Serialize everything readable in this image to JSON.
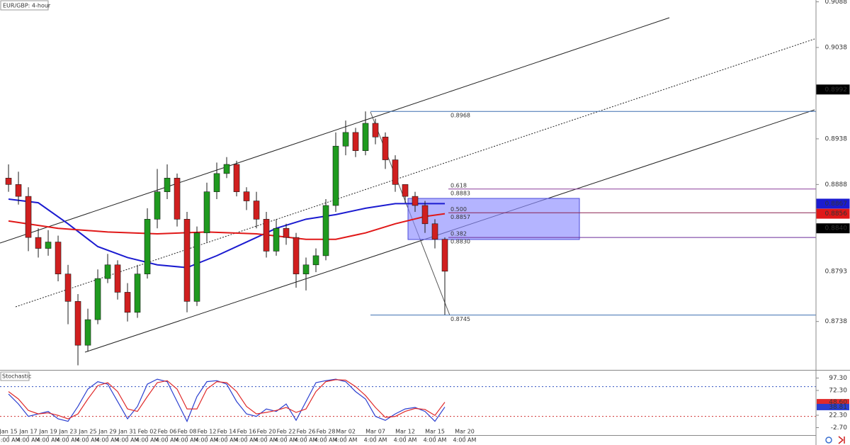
{
  "chart_data": [
    {
      "type": "candlestick",
      "title": "EUR/GBP: 4-hour",
      "up_color": "#1f9a1f",
      "down_color": "#d01f1f",
      "xlim": [
        -0.86,
        81.43
      ],
      "ylim": [
        0.8685,
        0.909
      ],
      "yticks": [
        0.9088,
        0.9038,
        0.8938,
        0.8888,
        0.8738
      ],
      "xticks": [
        {
          "value": 0,
          "label": "Jan 15",
          "time": "4:00 AM"
        },
        {
          "value": 2,
          "label": "Jan 17",
          "time": "4:00 AM"
        },
        {
          "value": 4,
          "label": "Jan 19",
          "time": "4:00 AM"
        },
        {
          "value": 6,
          "label": "Jan 23",
          "time": "4:00 AM"
        },
        {
          "value": 8,
          "label": "Jan 25",
          "time": "4:00 AM"
        },
        {
          "value": 10,
          "label": "Jan 29",
          "time": "4:00 AM"
        },
        {
          "value": 12,
          "label": "Jan 31",
          "time": "4:00 AM"
        },
        {
          "value": 14,
          "label": "Feb 02",
          "time": "4:00 AM"
        },
        {
          "value": 16,
          "label": "Feb 06",
          "time": "4:00 AM"
        },
        {
          "value": 18,
          "label": "Feb 08",
          "time": "4:00 AM"
        },
        {
          "value": 20,
          "label": "Feb 12",
          "time": "4:00 AM"
        },
        {
          "value": 22,
          "label": "Feb 14",
          "time": "4:00 AM"
        },
        {
          "value": 24,
          "label": "Feb 16",
          "time": "4:00 AM"
        },
        {
          "value": 26,
          "label": "Feb 20",
          "time": "4:00 AM"
        },
        {
          "value": 28,
          "label": "Feb 22",
          "time": "4:00 AM"
        },
        {
          "value": 30,
          "label": "Feb 26",
          "time": "4:00 AM"
        },
        {
          "value": 32,
          "label": "Feb 28",
          "time": "4:00 AM"
        },
        {
          "value": 34,
          "label": "Mar 02",
          "time": "4:00 AM"
        },
        {
          "value": 37,
          "label": "Mar 07",
          "time": "4:00 AM"
        },
        {
          "value": 40,
          "label": "Mar 12",
          "time": "4:00 AM"
        },
        {
          "value": 43,
          "label": "Mar 15",
          "time": "4:00 AM"
        },
        {
          "value": 46,
          "label": "Mar 20",
          "time": "4:00 AM"
        }
      ],
      "x": [
        0,
        1,
        2,
        3,
        4,
        5,
        6,
        7,
        8,
        9,
        10,
        11,
        12,
        13,
        14,
        15,
        16,
        17,
        18,
        19,
        20,
        21,
        22,
        23,
        24,
        25,
        26,
        27,
        28,
        29,
        30,
        31,
        32,
        33,
        34,
        35,
        36,
        37,
        38,
        39,
        40,
        41,
        42,
        43,
        44
      ],
      "open": [
        0.8895,
        0.8888,
        0.8875,
        0.883,
        0.8818,
        0.8825,
        0.879,
        0.876,
        0.8712,
        0.874,
        0.8785,
        0.88,
        0.877,
        0.8748,
        0.879,
        0.885,
        0.888,
        0.8895,
        0.885,
        0.876,
        0.8835,
        0.888,
        0.89,
        0.891,
        0.888,
        0.887,
        0.885,
        0.8815,
        0.884,
        0.883,
        0.879,
        0.88,
        0.881,
        0.8865,
        0.893,
        0.8945,
        0.8925,
        0.8955,
        0.894,
        0.8915,
        0.8888,
        0.8875,
        0.8865,
        0.8845,
        0.8828
      ],
      "high": [
        0.891,
        0.8902,
        0.8885,
        0.884,
        0.8838,
        0.8832,
        0.88,
        0.8768,
        0.8752,
        0.8795,
        0.8812,
        0.8805,
        0.878,
        0.88,
        0.8862,
        0.8905,
        0.891,
        0.89,
        0.8858,
        0.8842,
        0.889,
        0.8912,
        0.8918,
        0.8914,
        0.8885,
        0.888,
        0.8858,
        0.885,
        0.8845,
        0.8835,
        0.8808,
        0.8818,
        0.8872,
        0.8945,
        0.8958,
        0.895,
        0.8968,
        0.896,
        0.8945,
        0.892,
        0.8885,
        0.888,
        0.887,
        0.885,
        0.883
      ],
      "low": [
        0.888,
        0.8866,
        0.8815,
        0.8808,
        0.881,
        0.8782,
        0.8735,
        0.869,
        0.8705,
        0.8735,
        0.878,
        0.8762,
        0.8738,
        0.8742,
        0.8785,
        0.884,
        0.8872,
        0.8842,
        0.8748,
        0.8755,
        0.8825,
        0.8872,
        0.8895,
        0.8875,
        0.886,
        0.884,
        0.8808,
        0.881,
        0.8822,
        0.8775,
        0.8772,
        0.8792,
        0.8805,
        0.8858,
        0.892,
        0.8918,
        0.892,
        0.8932,
        0.8905,
        0.888,
        0.8868,
        0.8858,
        0.8835,
        0.8818,
        0.8745
      ],
      "close": [
        0.8888,
        0.8875,
        0.883,
        0.8818,
        0.8825,
        0.879,
        0.876,
        0.8712,
        0.874,
        0.8785,
        0.88,
        0.877,
        0.8748,
        0.879,
        0.885,
        0.888,
        0.8895,
        0.885,
        0.876,
        0.8835,
        0.888,
        0.89,
        0.891,
        0.888,
        0.887,
        0.885,
        0.8815,
        0.884,
        0.883,
        0.879,
        0.88,
        0.881,
        0.8865,
        0.893,
        0.8945,
        0.8925,
        0.8955,
        0.894,
        0.8915,
        0.8888,
        0.8875,
        0.8865,
        0.8845,
        0.8828,
        0.8793
      ],
      "overlays": [
        {
          "color": "#1b1bd0",
          "x": [
            0,
            3,
            6,
            9,
            12,
            15,
            18,
            21,
            24,
            27,
            30,
            33,
            36,
            39,
            42,
            44
          ],
          "values": [
            0.8872,
            0.8868,
            0.8845,
            0.882,
            0.8808,
            0.88,
            0.8797,
            0.881,
            0.8825,
            0.884,
            0.885,
            0.8855,
            0.8862,
            0.8867,
            0.8867,
            0.8867
          ]
        },
        {
          "color": "#e01818",
          "x": [
            0,
            5,
            10,
            15,
            20,
            25,
            30,
            33,
            36,
            39,
            42,
            44
          ],
          "values": [
            0.8848,
            0.884,
            0.8836,
            0.8834,
            0.8836,
            0.8834,
            0.8828,
            0.8828,
            0.8835,
            0.8845,
            0.8853,
            0.8856
          ]
        }
      ],
      "fib_levels": [
        {
          "value": 0.8968,
          "label": "0.8968",
          "color": "#3d6fb0"
        },
        {
          "value": 0.8883,
          "label": "0.8883",
          "ratio": "0.618",
          "color": "#8a3b9a"
        },
        {
          "value": 0.8857,
          "label": "0.8857",
          "ratio": "0.500",
          "color": "#8a2250"
        },
        {
          "value": 0.883,
          "label": "0.8830",
          "ratio": "0.382",
          "color": "#6a2c9a"
        },
        {
          "value": 0.8745,
          "label": "0.8745",
          "color": "#3d6fb0"
        }
      ],
      "price_tags": [
        {
          "value": 0.8992,
          "label": "0.8992",
          "bg": "#000000",
          "fg": "#ffffff"
        },
        {
          "value": 0.8867,
          "label": "0.8867",
          "bg": "#1b1bd0",
          "fg": "#ffffff"
        },
        {
          "value": 0.8856,
          "label": "0.8856",
          "bg": "#e01818",
          "fg": "#ffffff"
        },
        {
          "value": 0.884,
          "label": "0.8840",
          "bg": "#000000",
          "fg": "#ffffff"
        },
        {
          "value": 0.8793,
          "label": "0.8793",
          "bg": "#ffffff",
          "fg": "#000000"
        }
      ]
    },
    {
      "type": "line",
      "title": "Stochastic",
      "xlim": [
        -0.86,
        81.43
      ],
      "ylim": [
        -17.7,
        112.3
      ],
      "yticks": [
        {
          "value": 97.3,
          "label": "97.30"
        },
        {
          "value": 72.3,
          "label": "72.30"
        },
        {
          "value": 22.3,
          "label": "22.30"
        },
        {
          "value": -2.7,
          "label": "-2.70"
        }
      ],
      "levels": [
        {
          "value": 80,
          "color": "#3050c0"
        },
        {
          "value": 20,
          "color": "#d03030"
        }
      ],
      "x": [
        0,
        1,
        2,
        3,
        4,
        5,
        6,
        7,
        8,
        9,
        10,
        11,
        12,
        13,
        14,
        15,
        16,
        17,
        18,
        19,
        20,
        21,
        22,
        23,
        24,
        25,
        26,
        27,
        28,
        29,
        30,
        31,
        32,
        33,
        34,
        35,
        36,
        37,
        38,
        39,
        40,
        41,
        42,
        43,
        44
      ],
      "series": [
        {
          "color": "#2b3fd0",
          "values": [
            65,
            45,
            20,
            25,
            30,
            15,
            10,
            40,
            75,
            90,
            85,
            50,
            15,
            40,
            85,
            95,
            90,
            50,
            10,
            60,
            90,
            92,
            85,
            50,
            25,
            20,
            35,
            30,
            45,
            12,
            50,
            88,
            92,
            95,
            90,
            70,
            55,
            20,
            12,
            25,
            35,
            38,
            30,
            10,
            38.81
          ]
        },
        {
          "color": "#e02a2a",
          "values": [
            70,
            55,
            32,
            25,
            27,
            22,
            15,
            25,
            55,
            82,
            88,
            70,
            35,
            30,
            60,
            88,
            92,
            75,
            35,
            35,
            75,
            90,
            88,
            70,
            40,
            25,
            28,
            32,
            38,
            28,
            35,
            70,
            90,
            94,
            93,
            80,
            62,
            38,
            18,
            20,
            30,
            36,
            34,
            22,
            48.6
          ]
        }
      ],
      "tags": [
        {
          "value": 48.6,
          "label": "48.60",
          "bg": "#e02a2a",
          "fg": "#ffffff"
        },
        {
          "value": 38.81,
          "label": "38.81",
          "bg": "#2b3fd0",
          "fg": "#ffffff"
        }
      ]
    }
  ]
}
